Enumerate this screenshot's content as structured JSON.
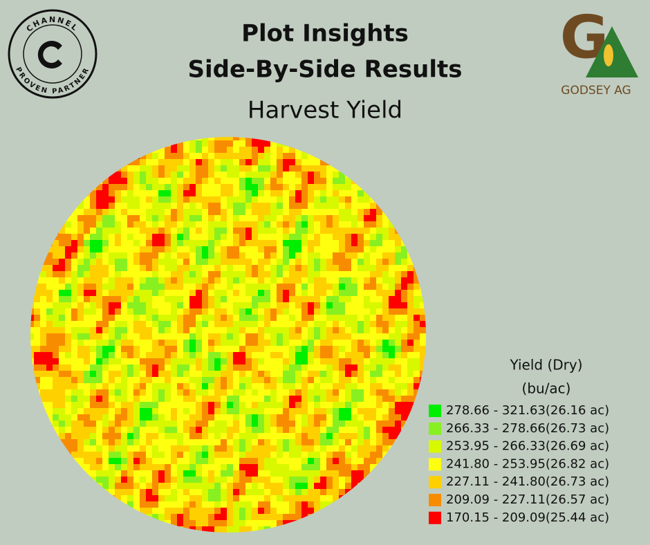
{
  "header": {
    "title_lines": [
      "Plot Insights",
      "Side-By-Side Results"
    ],
    "subtitle": "Harvest Yield"
  },
  "logos": {
    "left_top": "CHANNEL",
    "left_bottom": "PROVEN PARTNER",
    "right_mark_g": "G",
    "right_mark_a": "A",
    "right_name": "GODSEY AG"
  },
  "legend": {
    "title_lines": [
      "Yield (Dry)",
      "(bu/ac)"
    ],
    "items": [
      {
        "label": "278.66 - 321.63(26.16 ac)",
        "color": "#00ee00"
      },
      {
        "label": "266.33 - 278.66(26.73 ac)",
        "color": "#88f020"
      },
      {
        "label": "253.95 - 266.33(26.69 ac)",
        "color": "#d8f800"
      },
      {
        "label": "241.80 - 253.95(26.82 ac)",
        "color": "#ffff10"
      },
      {
        "label": "227.11 - 241.80(26.73 ac)",
        "color": "#ffd000"
      },
      {
        "label": "209.09 - 227.11(26.57 ac)",
        "color": "#f88c00"
      },
      {
        "label": "170.15 - 209.09(25.44 ac)",
        "color": "#ff0000"
      }
    ]
  }
}
